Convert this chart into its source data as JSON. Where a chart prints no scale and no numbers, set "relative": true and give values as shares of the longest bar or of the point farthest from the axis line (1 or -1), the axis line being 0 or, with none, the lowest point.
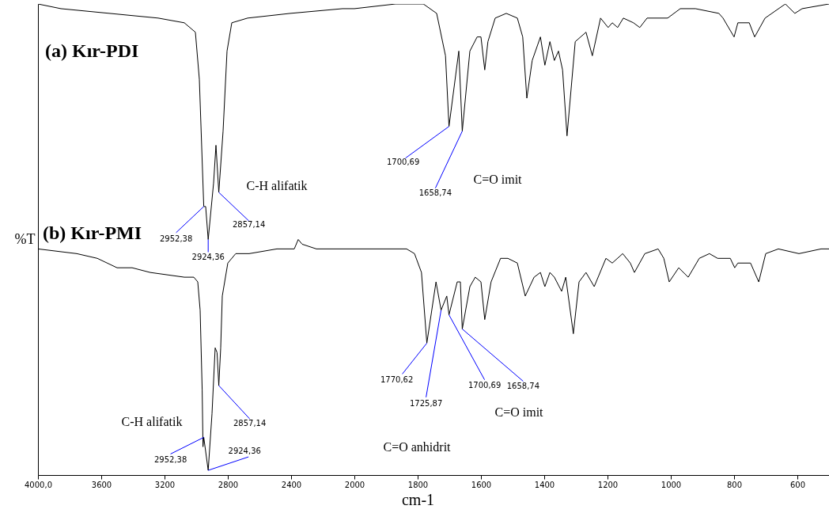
{
  "chart_data": [
    {
      "type": "line",
      "ylabel": "%T",
      "relative": true,
      "xlim": [
        4000,
        2000
      ],
      "xticks": [
        {
          "value": 4000,
          "label": "4000,0"
        },
        3600,
        3200,
        2800,
        2400
      ],
      "series": [
        {
          "name": "(a) Kır-PDI",
          "color": "#000000",
          "x": [
            4000,
            3855,
            3240,
            3075,
            3005,
            2980,
            2952,
            2940,
            2924,
            2890,
            2875,
            2857,
            2830,
            2805,
            2775,
            2675,
            2405,
            2075,
            2000
          ],
          "values": [
            1.0,
            0.99,
            0.97,
            0.96,
            0.94,
            0.84,
            0.57,
            0.57,
            0.5,
            0.62,
            0.7,
            0.6,
            0.73,
            0.9,
            0.96,
            0.97,
            0.98,
            0.99,
            0.99
          ]
        },
        {
          "name": "(b) Kır-PMI",
          "color": "#000000",
          "x": [
            4000,
            3755,
            3625,
            3500,
            3405,
            3290,
            3075,
            3015,
            2990,
            2975,
            2962,
            2957,
            2952,
            2924,
            2900,
            2880,
            2868,
            2857,
            2845,
            2835,
            2800,
            2750,
            2665,
            2490,
            2380,
            2355,
            2330,
            2240,
            2000
          ],
          "values": [
            0.48,
            0.47,
            0.46,
            0.44,
            0.44,
            0.43,
            0.42,
            0.42,
            0.41,
            0.35,
            0.18,
            0.06,
            0.08,
            0.01,
            0.13,
            0.27,
            0.26,
            0.19,
            0.27,
            0.38,
            0.45,
            0.47,
            0.47,
            0.48,
            0.48,
            0.5,
            0.49,
            0.48,
            0.48
          ]
        }
      ],
      "annotations": [
        "C-H alifatik",
        "C-H alifatik",
        {
          "text": "2952,38",
          "x": 2952,
          "y": 0.57
        },
        {
          "text": "2924,36",
          "x": 2924,
          "y": 0.5
        },
        {
          "text": "2857,14",
          "x": 2857,
          "y": 0.6
        },
        {
          "text": "2952,38",
          "x": 2952,
          "y": 0.08
        },
        {
          "text": "2924,36",
          "x": 2924,
          "y": 0.01
        },
        {
          "text": "2857,14",
          "x": 2857,
          "y": 0.19
        }
      ]
    },
    {
      "type": "line",
      "xlabel": "cm-1",
      "relative": true,
      "xlim": [
        2000,
        500
      ],
      "xticks": [
        2000,
        1800,
        1600,
        1400,
        1200,
        1000,
        800,
        600
      ],
      "series": [
        {
          "color": "#000000",
          "x": [
            2000,
            1870,
            1782,
            1740,
            1712,
            1701,
            1670,
            1659,
            1635,
            1612,
            1600,
            1588,
            1578,
            1555,
            1520,
            1485,
            1468,
            1455,
            1438,
            1412,
            1398,
            1382,
            1368,
            1355,
            1342,
            1328,
            1302,
            1268,
            1248,
            1222,
            1198,
            1185,
            1168,
            1150,
            1118,
            1098,
            1075,
            1010,
            970,
            922,
            848,
            835,
            800,
            788,
            752,
            735,
            702,
            638,
            608,
            585,
            500
          ],
          "values": [
            0.99,
            1.0,
            1.0,
            0.98,
            0.89,
            0.74,
            0.9,
            0.73,
            0.9,
            0.93,
            0.93,
            0.86,
            0.92,
            0.97,
            0.98,
            0.97,
            0.93,
            0.8,
            0.88,
            0.93,
            0.87,
            0.92,
            0.88,
            0.9,
            0.86,
            0.72,
            0.92,
            0.94,
            0.89,
            0.97,
            0.95,
            0.96,
            0.95,
            0.97,
            0.96,
            0.95,
            0.97,
            0.97,
            0.99,
            0.99,
            0.98,
            0.97,
            0.93,
            0.96,
            0.96,
            0.93,
            0.97,
            1.0,
            0.98,
            0.99,
            1.0
          ]
        },
        {
          "color": "#000000",
          "x": [
            2000,
            1870,
            1835,
            1810,
            1788,
            1771,
            1742,
            1726,
            1708,
            1701,
            1675,
            1665,
            1659,
            1635,
            1618,
            1600,
            1588,
            1568,
            1538,
            1515,
            1485,
            1460,
            1432,
            1412,
            1398,
            1382,
            1368,
            1345,
            1332,
            1308,
            1290,
            1268,
            1242,
            1205,
            1185,
            1152,
            1128,
            1115,
            1082,
            1040,
            1022,
            1005,
            975,
            945,
            910,
            878,
            852,
            812,
            798,
            788,
            748,
            722,
            700,
            660,
            595,
            525,
            500
          ],
          "values": [
            0.48,
            0.48,
            0.48,
            0.47,
            0.43,
            0.28,
            0.41,
            0.35,
            0.38,
            0.34,
            0.41,
            0.41,
            0.31,
            0.4,
            0.42,
            0.41,
            0.33,
            0.41,
            0.46,
            0.46,
            0.45,
            0.38,
            0.42,
            0.43,
            0.4,
            0.43,
            0.42,
            0.39,
            0.42,
            0.3,
            0.41,
            0.43,
            0.4,
            0.46,
            0.45,
            0.47,
            0.45,
            0.43,
            0.47,
            0.48,
            0.46,
            0.41,
            0.44,
            0.42,
            0.46,
            0.47,
            0.46,
            0.46,
            0.44,
            0.45,
            0.45,
            0.41,
            0.47,
            0.48,
            0.47,
            0.48,
            0.48
          ]
        }
      ],
      "annotations": [
        "C=O imit",
        "C=O anhidrit",
        "C=O imit",
        {
          "text": "1700,69",
          "x": 1701,
          "y": 0.74
        },
        {
          "text": "1658,74",
          "x": 1659,
          "y": 0.73
        },
        {
          "text": "1770,62",
          "x": 1771,
          "y": 0.28
        },
        {
          "text": "1725,87",
          "x": 1726,
          "y": 0.35
        },
        {
          "text": "1700,69",
          "x": 1701,
          "y": 0.34
        },
        {
          "text": "1658,74",
          "x": 1659,
          "y": 0.31
        }
      ]
    }
  ]
}
